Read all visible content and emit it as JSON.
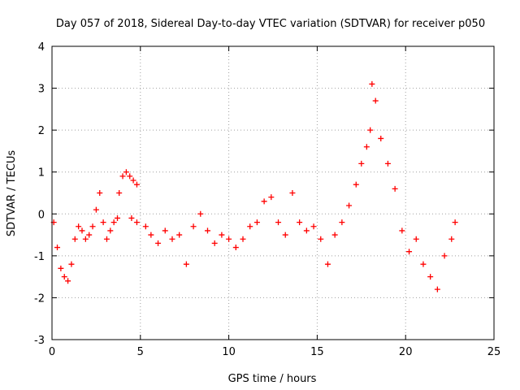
{
  "chart_data": {
    "type": "scatter",
    "title": "Day 057 of 2018, Sidereal Day-to-day VTEC variation (SDTVAR) for receiver p050",
    "xlabel": "GPS time / hours",
    "ylabel": "SDTVAR / TECUs",
    "xlim": [
      0,
      25
    ],
    "ylim": [
      -3,
      4
    ],
    "xticks": [
      0,
      5,
      10,
      15,
      20,
      25
    ],
    "yticks": [
      -3,
      -2,
      -1,
      0,
      1,
      2,
      3,
      4
    ],
    "grid": true,
    "marker": "+",
    "series_color": "#ff0000",
    "series": [
      {
        "name": "SDTVAR",
        "x": [
          0.1,
          0.3,
          0.5,
          0.7,
          0.9,
          1.1,
          1.3,
          1.5,
          1.7,
          1.9,
          2.1,
          2.3,
          2.5,
          2.7,
          2.9,
          3.1,
          3.3,
          3.5,
          3.7,
          3.8,
          4.0,
          4.2,
          4.4,
          4.6,
          4.8,
          4.5,
          4.8,
          5.3,
          5.6,
          6.0,
          6.4,
          6.8,
          7.2,
          7.6,
          8.0,
          8.4,
          8.8,
          9.2,
          9.6,
          10.0,
          10.4,
          10.8,
          11.2,
          11.6,
          12.0,
          12.4,
          12.8,
          13.2,
          13.6,
          14.0,
          14.4,
          14.8,
          15.2,
          15.6,
          16.0,
          16.4,
          16.8,
          17.2,
          17.5,
          17.8,
          18.0,
          18.1,
          18.3,
          18.6,
          19.0,
          19.4,
          19.8,
          20.2,
          20.6,
          21.0,
          21.4,
          21.8,
          22.2,
          22.6,
          22.8
        ],
        "y": [
          -0.2,
          -0.8,
          -1.3,
          -1.5,
          -1.6,
          -1.2,
          -0.6,
          -0.3,
          -0.4,
          -0.6,
          -0.5,
          -0.3,
          0.1,
          0.5,
          -0.2,
          -0.6,
          -0.4,
          -0.2,
          -0.1,
          0.5,
          0.9,
          1.0,
          0.9,
          0.8,
          0.7,
          -0.1,
          -0.2,
          -0.3,
          -0.5,
          -0.7,
          -0.4,
          -0.6,
          -0.5,
          -1.2,
          -0.3,
          0.0,
          -0.4,
          -0.7,
          -0.5,
          -0.6,
          -0.8,
          -0.6,
          -0.3,
          -0.2,
          0.3,
          0.4,
          -0.2,
          -0.5,
          0.5,
          -0.2,
          -0.4,
          -0.3,
          -0.6,
          -1.2,
          -0.5,
          -0.2,
          0.2,
          0.7,
          1.2,
          1.6,
          2.0,
          3.1,
          2.7,
          1.8,
          1.2,
          0.6,
          -0.4,
          -0.9,
          -0.6,
          -1.2,
          -1.5,
          -1.8,
          -1.0,
          -0.6,
          -0.2
        ]
      }
    ]
  }
}
